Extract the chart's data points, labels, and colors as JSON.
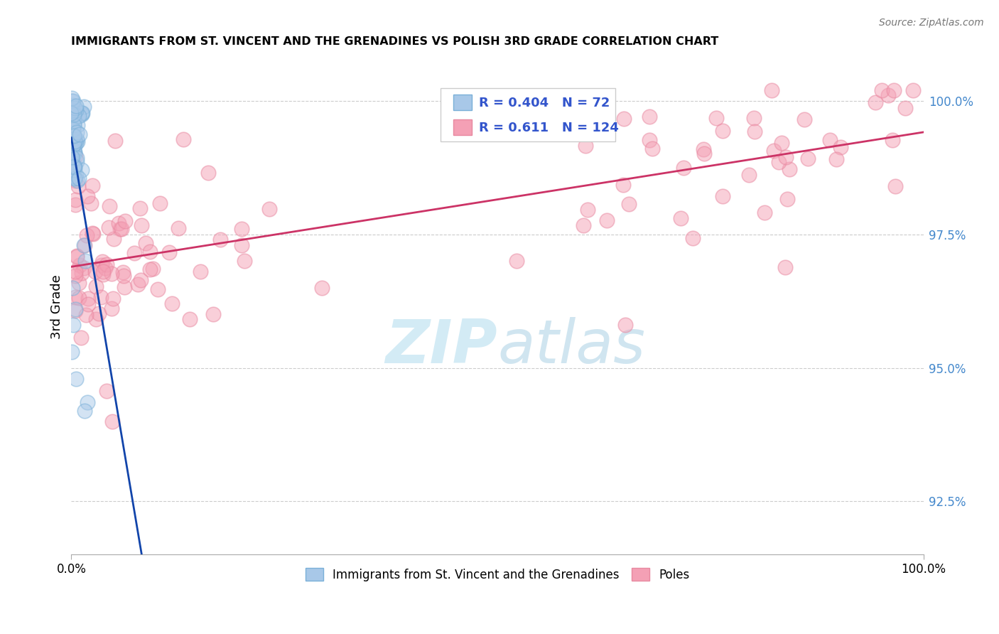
{
  "title": "IMMIGRANTS FROM ST. VINCENT AND THE GRENADINES VS POLISH 3RD GRADE CORRELATION CHART",
  "source": "Source: ZipAtlas.com",
  "blue_label": "Immigrants from St. Vincent and the Grenadines",
  "pink_label": "Poles",
  "blue_R": 0.404,
  "blue_N": 72,
  "pink_R": 0.611,
  "pink_N": 124,
  "blue_color": "#a8c8e8",
  "pink_color": "#f4a0b5",
  "blue_edge_color": "#7ab0d8",
  "pink_edge_color": "#e888a0",
  "blue_line_color": "#1144aa",
  "pink_line_color": "#cc3366",
  "legend_text_color": "#3355cc",
  "right_tick_color": "#4488cc",
  "watermark_color": "#cce8f4",
  "xlim": [
    0,
    100
  ],
  "ylim": [
    91.5,
    100.8
  ],
  "ytick_positions": [
    92.5,
    95.0,
    97.5,
    100.0
  ],
  "ytick_labels": [
    "92.5%",
    "95.0%",
    "97.5%",
    "100.0%"
  ],
  "xtick_positions": [
    0,
    100
  ],
  "xtick_labels": [
    "0.0%",
    "100.0%"
  ]
}
